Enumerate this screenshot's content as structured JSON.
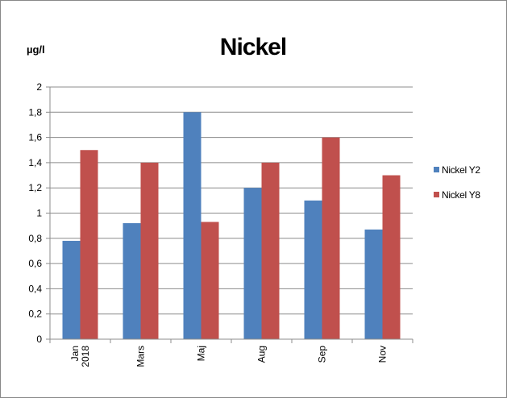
{
  "chart_data": {
    "type": "bar",
    "title": "Nickel",
    "ylabel": "µg/l",
    "xlabel": "",
    "categories": [
      "Jan 2018",
      "Mars",
      "Maj",
      "Aug",
      "Sep",
      "Nov"
    ],
    "series": [
      {
        "name": "Nickel Y2",
        "values": [
          0.78,
          0.92,
          1.8,
          1.2,
          1.1,
          0.87
        ],
        "color": "#4F81BD"
      },
      {
        "name": "Nickel Y8",
        "values": [
          1.5,
          1.4,
          0.93,
          1.4,
          1.6,
          1.3
        ],
        "color": "#C0504D"
      }
    ],
    "ylim": [
      0,
      2
    ],
    "yticks": [
      0,
      0.2,
      0.4,
      0.6,
      0.8,
      1,
      1.2,
      1.4,
      1.6,
      1.8,
      2
    ],
    "ytick_labels": [
      "0",
      "0,2",
      "0,4",
      "0,6",
      "0,8",
      "1",
      "1,2",
      "1,4",
      "1,6",
      "1,8",
      "2"
    ],
    "grid": true,
    "legend_position": "right"
  }
}
